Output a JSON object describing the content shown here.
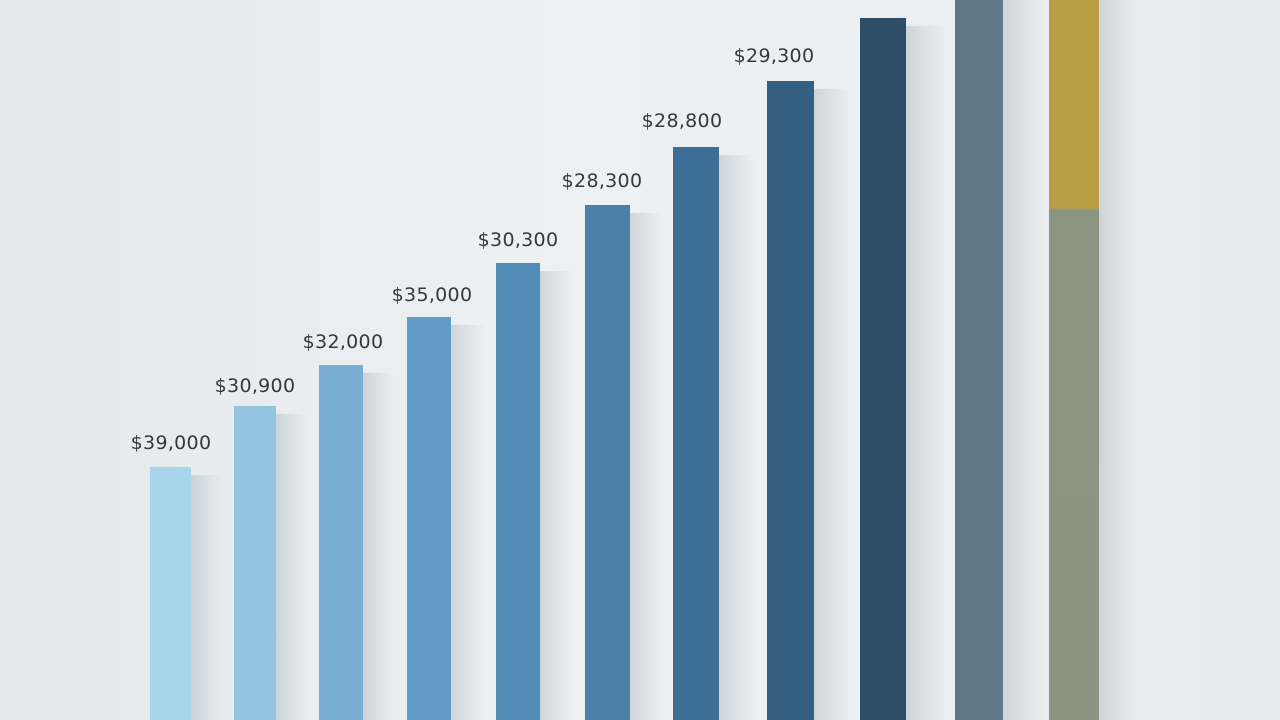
{
  "labels": [
    "$39,000",
    "$30,900",
    "$32,000",
    "$35,000",
    "$30,300",
    "$28,300",
    "$28,800",
    "$29,300"
  ]
}
